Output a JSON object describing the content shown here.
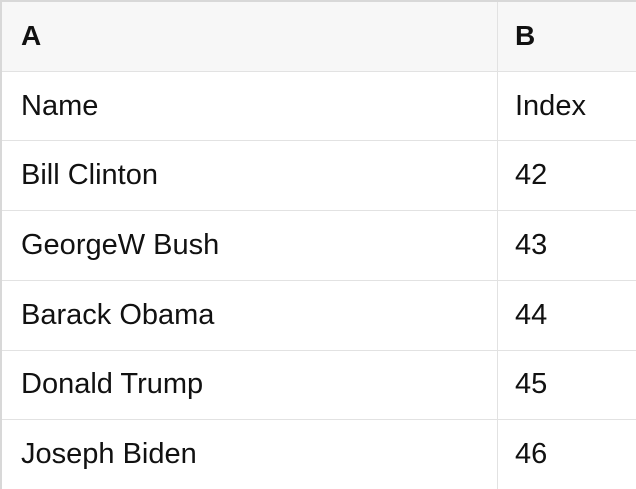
{
  "table": {
    "columns": [
      {
        "key": "A",
        "label": "A"
      },
      {
        "key": "B",
        "label": "B"
      }
    ],
    "rows": [
      [
        "Name",
        "Index"
      ],
      [
        "Bill Clinton",
        "42"
      ],
      [
        "GeorgeW Bush",
        "43"
      ],
      [
        "Barack Obama",
        "44"
      ],
      [
        "Donald Trump",
        "45"
      ],
      [
        "Joseph Biden",
        "46"
      ]
    ],
    "colors": {
      "header_bg": "#f7f7f7",
      "row_bg": "#ffffff",
      "divider": "#e2e2e2",
      "outer_border": "#d8d8d8",
      "text": "#111111"
    }
  }
}
